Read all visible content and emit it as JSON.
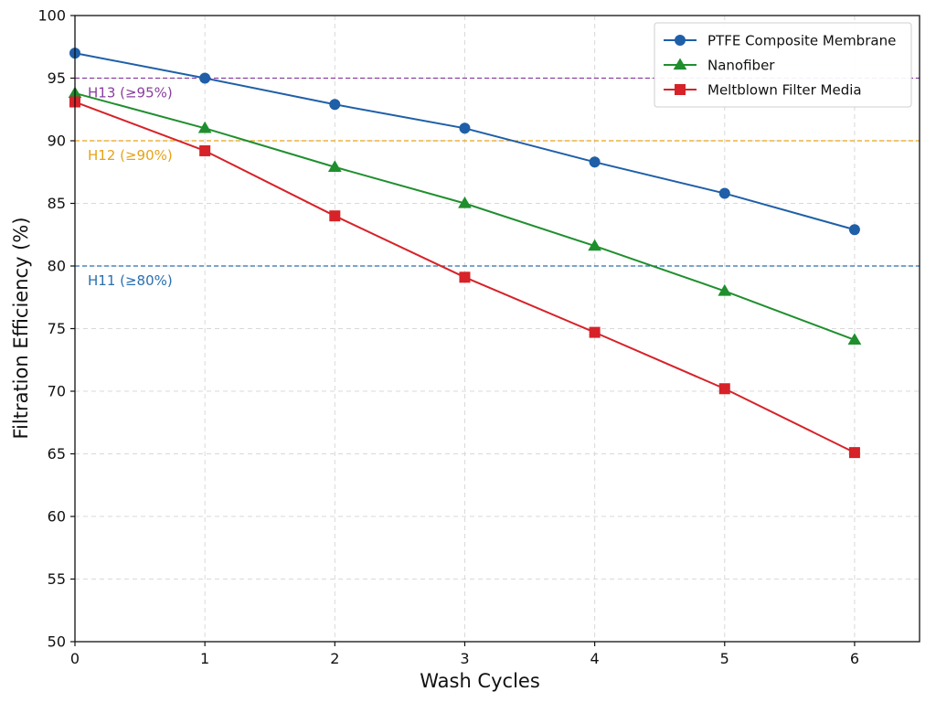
{
  "chart_data": {
    "type": "line",
    "xlabel": "Wash Cycles",
    "ylabel": "Filtration Efficiency (%)",
    "xlim": [
      0,
      6.5
    ],
    "ylim": [
      50,
      100
    ],
    "x_ticks": [
      "0",
      "1",
      "2",
      "3",
      "4",
      "5",
      "6"
    ],
    "y_ticks": [
      "50",
      "55",
      "60",
      "65",
      "70",
      "75",
      "80",
      "85",
      "90",
      "95",
      "100"
    ],
    "grid": true,
    "legend_position": "top-right",
    "x": [
      0,
      1,
      2,
      3,
      4,
      5,
      6
    ],
    "series": [
      {
        "name": "PTFE Composite Membrane",
        "color": "#1f5fa8",
        "marker": "circle",
        "values": [
          97.0,
          95.0,
          92.9,
          91.0,
          88.3,
          85.8,
          82.9
        ]
      },
      {
        "name": "Nanofiber",
        "color": "#1f8f2e",
        "marker": "triangle",
        "values": [
          93.8,
          91.0,
          87.9,
          85.0,
          81.6,
          78.0,
          74.1
        ]
      },
      {
        "name": "Meltblown Filter Media",
        "color": "#d62228",
        "marker": "square",
        "values": [
          93.1,
          89.2,
          84.0,
          79.1,
          74.7,
          70.2,
          65.1
        ]
      }
    ],
    "reference_lines": [
      {
        "label": "H13 (≥95%)",
        "value": 95,
        "color": "#8a3fa0"
      },
      {
        "label": "H12 (≥90%)",
        "value": 90,
        "color": "#e6a317"
      },
      {
        "label": "H11 (≥80%)",
        "value": 80,
        "color": "#2a6fb0"
      }
    ]
  }
}
